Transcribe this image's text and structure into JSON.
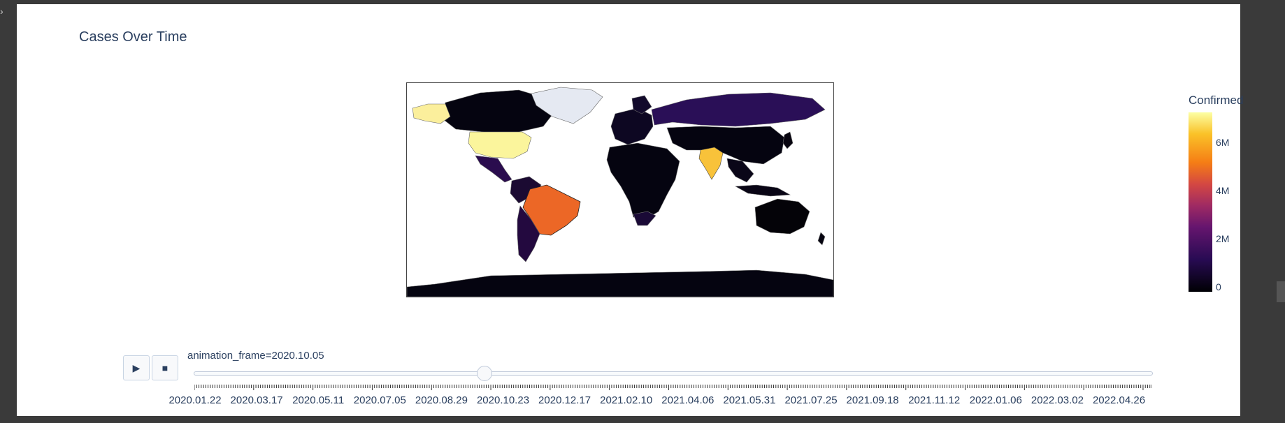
{
  "chart": {
    "title": "Cases Over Time",
    "colorbar": {
      "title": "Confirmed",
      "ticks": [
        "6M",
        "4M",
        "2M",
        "0"
      ],
      "colorscale": [
        "#000004",
        "#280b53",
        "#65156e",
        "#9f2a63",
        "#d44842",
        "#f57d15",
        "#fac228",
        "#fcffa4"
      ]
    }
  },
  "animation": {
    "play_icon": "play-icon",
    "stop_icon": "stop-icon",
    "current_label": "animation_frame=2020.10.05",
    "current_fraction": 0.303,
    "tick_labels": [
      "2020.01.22",
      "2020.03.17",
      "2020.05.11",
      "2020.07.05",
      "2020.08.29",
      "2020.10.23",
      "2020.12.17",
      "2021.02.10",
      "2021.04.06",
      "2021.05.31",
      "2021.07.25",
      "2021.09.18",
      "2021.11.12",
      "2022.01.06",
      "2022.03.02",
      "2022.04.26"
    ]
  },
  "chart_data": {
    "type": "choropleth",
    "title": "Cases Over Time",
    "frame": "2020.10.05",
    "colorbar_title": "Confirmed",
    "color_range": [
      0,
      7500000
    ],
    "regions": [
      {
        "name": "United States",
        "value": 7400000
      },
      {
        "name": "India",
        "value": 6600000
      },
      {
        "name": "Brazil",
        "value": 4900000
      },
      {
        "name": "Russia",
        "value": 1200000
      },
      {
        "name": "Colombia",
        "value": 850000
      },
      {
        "name": "Argentina",
        "value": 800000
      },
      {
        "name": "Peru",
        "value": 830000
      },
      {
        "name": "Mexico",
        "value": 780000
      },
      {
        "name": "South Africa",
        "value": 680000
      },
      {
        "name": "Spain",
        "value": 800000
      },
      {
        "name": "France",
        "value": 650000
      }
    ]
  }
}
